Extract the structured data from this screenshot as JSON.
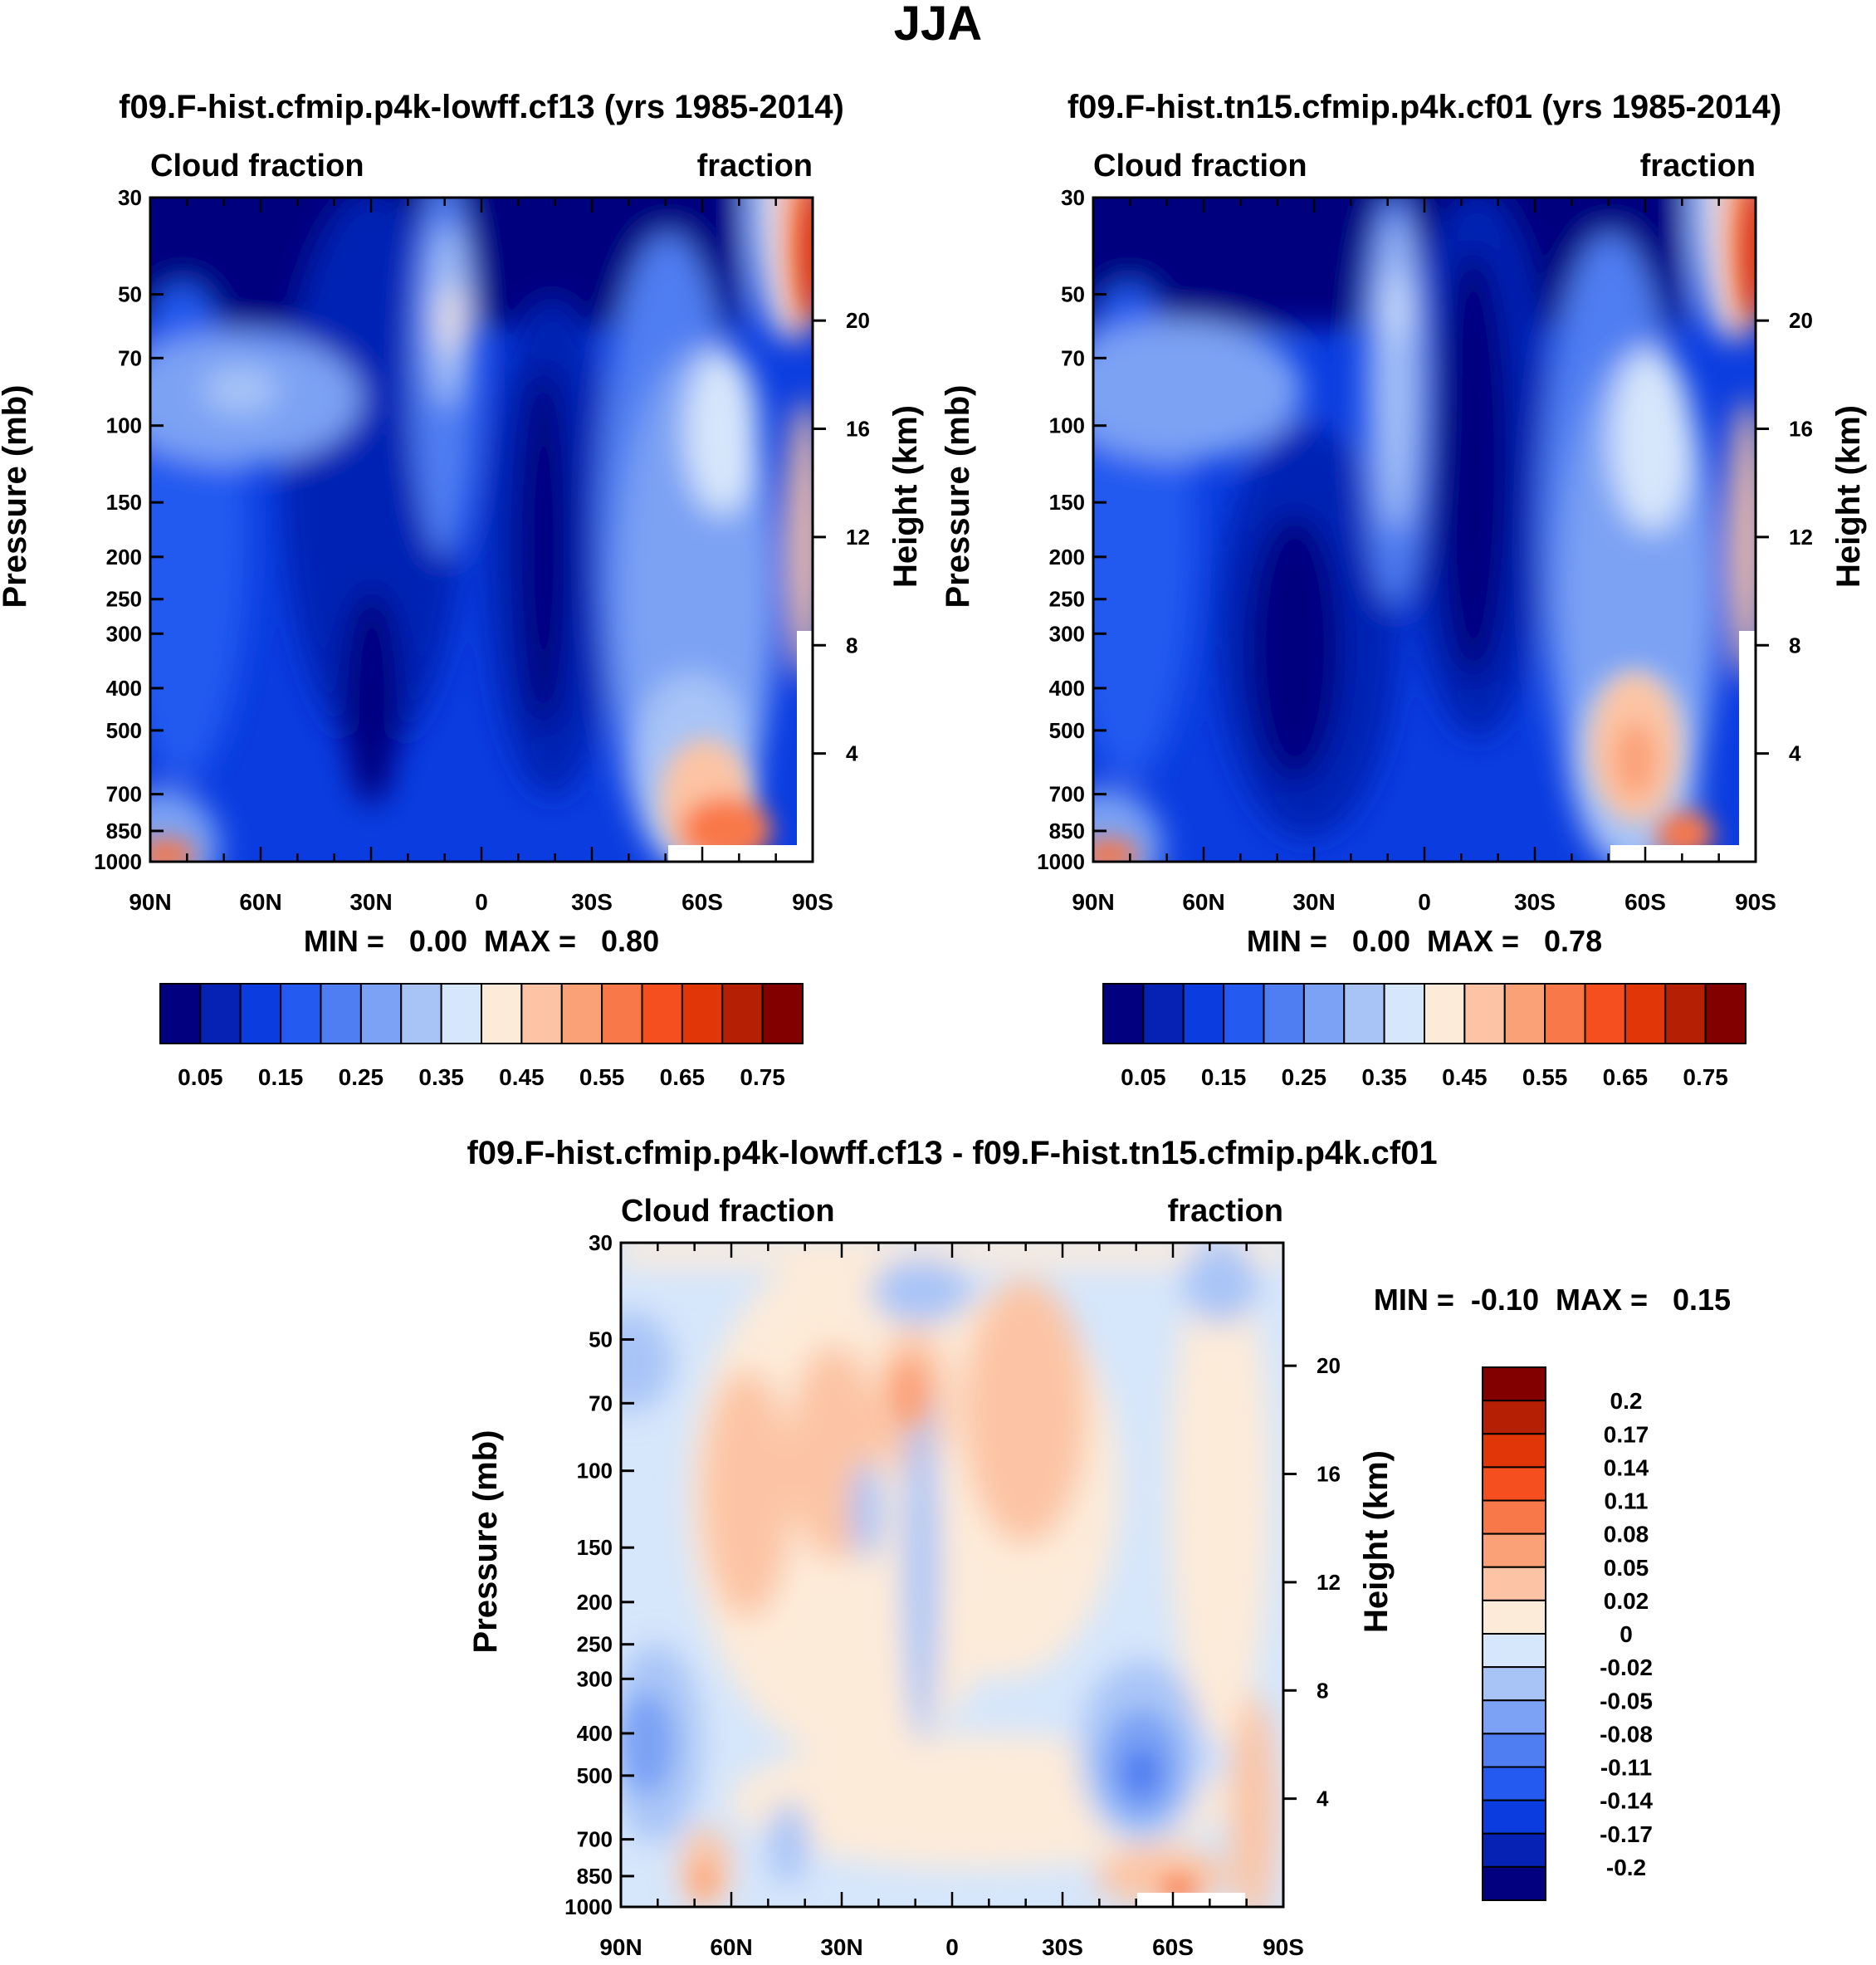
{
  "figure": {
    "title": "JJA"
  },
  "panels": [
    {
      "title": "f09.F-hist.cfmip.p4k-lowff.cf13 (yrs 1985-2014)",
      "left_label": "Cloud fraction",
      "right_label": "fraction",
      "stats": "MIN =   0.00  MAX =   0.80"
    },
    {
      "title": "f09.F-hist.tn15.cfmip.p4k.cf01 (yrs 1985-2014)",
      "left_label": "Cloud fraction",
      "right_label": "fraction",
      "stats": "MIN =   0.00  MAX =   0.78"
    },
    {
      "title": "f09.F-hist.cfmip.p4k-lowff.cf13 - f09.F-hist.tn15.cfmip.p4k.cf01",
      "left_label": "Cloud fraction",
      "right_label": "fraction",
      "stats": "MIN =  -0.10  MAX =   0.15"
    }
  ],
  "axes": {
    "y_label": "Pressure (mb)",
    "y2_label": "Height (km)",
    "pressure_ticks": [
      "30",
      "50",
      "70",
      "100",
      "150",
      "200",
      "250",
      "300",
      "400",
      "500",
      "700",
      "850",
      "1000"
    ],
    "height_ticks": [
      "20",
      "16",
      "12",
      "8",
      "4"
    ],
    "lat_ticks": [
      "90N",
      "60N",
      "30N",
      "0",
      "30S",
      "60S",
      "90S"
    ]
  },
  "colorbars": {
    "field": {
      "labels": [
        "0.05",
        "0.15",
        "0.25",
        "0.35",
        "0.45",
        "0.55",
        "0.65",
        "0.75"
      ],
      "colors": [
        "#02007f",
        "#0522b4",
        "#0a3ce0",
        "#245af0",
        "#4f7ef2",
        "#7ba2f4",
        "#a8c4f7",
        "#d6e6fb",
        "#fdebd9",
        "#fcc4a4",
        "#fba178",
        "#f9784a",
        "#f54e1f",
        "#e03608",
        "#b51f04",
        "#830000"
      ]
    },
    "diff": {
      "labels": [
        "0.2",
        "0.17",
        "0.14",
        "0.11",
        "0.08",
        "0.05",
        "0.02",
        "0",
        "-0.02",
        "-0.05",
        "-0.08",
        "-0.11",
        "-0.14",
        "-0.17",
        "-0.2"
      ],
      "colors": [
        "#830000",
        "#b51f04",
        "#e03608",
        "#f54e1f",
        "#f9784a",
        "#fba178",
        "#fcc4a4",
        "#fdebd9",
        "#d6e6fb",
        "#a8c4f7",
        "#7ba2f4",
        "#4f7ef2",
        "#245af0",
        "#0a3ce0",
        "#0522b4",
        "#02007f"
      ]
    }
  },
  "chart_data": [
    {
      "type": "heatmap",
      "title": "f09.F-hist.cfmip.p4k-lowff.cf13 (yrs 1985-2014)",
      "variable": "Cloud fraction",
      "units": "fraction",
      "x_ticks": [
        "90N",
        "60N",
        "30N",
        "0",
        "30S",
        "60S",
        "90S"
      ],
      "y_ticks": [
        30,
        50,
        70,
        100,
        150,
        200,
        250,
        300,
        400,
        500,
        700,
        850,
        1000
      ],
      "y_scale": "log",
      "xlim": [
        "90N",
        "90S"
      ],
      "ylim": [
        1000,
        30
      ],
      "min": 0.0,
      "max": 0.8,
      "levels": [
        0.05,
        0.1,
        0.15,
        0.2,
        0.25,
        0.3,
        0.35,
        0.4,
        0.45,
        0.5,
        0.55,
        0.6,
        0.65,
        0.7,
        0.75
      ]
    },
    {
      "type": "heatmap",
      "title": "f09.F-hist.tn15.cfmip.p4k.cf01 (yrs 1985-2014)",
      "variable": "Cloud fraction",
      "units": "fraction",
      "x_ticks": [
        "90N",
        "60N",
        "30N",
        "0",
        "30S",
        "60S",
        "90S"
      ],
      "y_ticks": [
        30,
        50,
        70,
        100,
        150,
        200,
        250,
        300,
        400,
        500,
        700,
        850,
        1000
      ],
      "y_scale": "log",
      "xlim": [
        "90N",
        "90S"
      ],
      "ylim": [
        1000,
        30
      ],
      "min": 0.0,
      "max": 0.78,
      "levels": [
        0.05,
        0.1,
        0.15,
        0.2,
        0.25,
        0.3,
        0.35,
        0.4,
        0.45,
        0.5,
        0.55,
        0.6,
        0.65,
        0.7,
        0.75
      ]
    },
    {
      "type": "heatmap",
      "title": "f09.F-hist.cfmip.p4k-lowff.cf13 - f09.F-hist.tn15.cfmip.p4k.cf01",
      "variable": "Cloud fraction",
      "units": "fraction",
      "x_ticks": [
        "90N",
        "60N",
        "30N",
        "0",
        "30S",
        "60S",
        "90S"
      ],
      "y_ticks": [
        30,
        50,
        70,
        100,
        150,
        200,
        250,
        300,
        400,
        500,
        700,
        850,
        1000
      ],
      "y_scale": "log",
      "xlim": [
        "90N",
        "90S"
      ],
      "ylim": [
        1000,
        30
      ],
      "min": -0.1,
      "max": 0.15,
      "levels": [
        -0.2,
        -0.17,
        -0.14,
        -0.11,
        -0.08,
        -0.05,
        -0.02,
        0,
        0.02,
        0.05,
        0.08,
        0.11,
        0.14,
        0.17,
        0.2
      ]
    }
  ]
}
